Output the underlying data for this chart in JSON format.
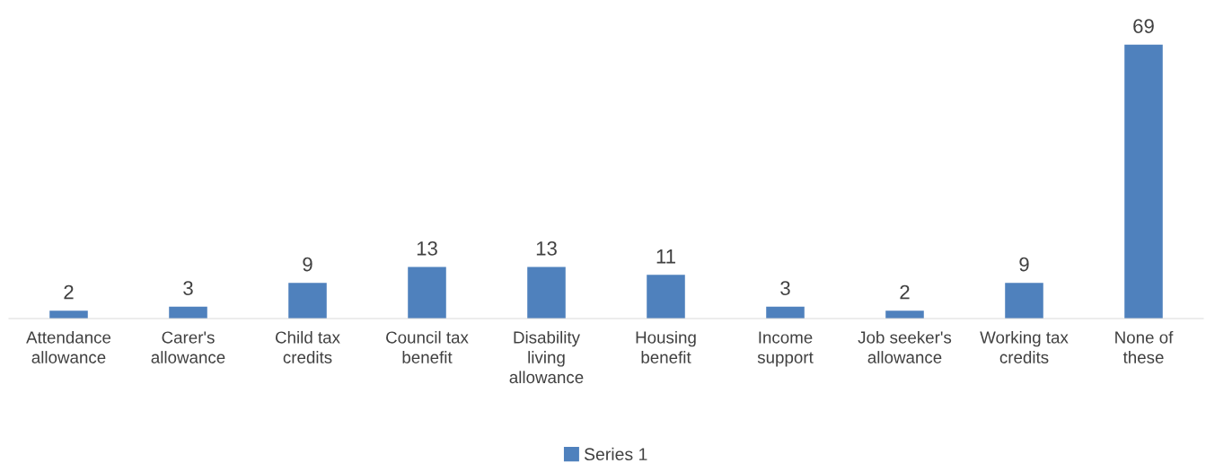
{
  "chart_data": {
    "type": "bar",
    "categories": [
      "Attendance\nallowance",
      "Carer's\nallowance",
      "Child tax\ncredits",
      "Council tax\nbenefit",
      "Disability\nliving\nallowance",
      "Housing\nbenefit",
      "Income\nsupport",
      "Job seeker's\nallowance",
      "Working tax\ncredits",
      "None of\nthese"
    ],
    "series": [
      {
        "name": "Series 1",
        "color": "#4f81bd",
        "values": [
          2,
          3,
          9,
          13,
          13,
          11,
          3,
          2,
          9,
          69
        ]
      }
    ],
    "data_labels": true,
    "legend": "bottom"
  }
}
